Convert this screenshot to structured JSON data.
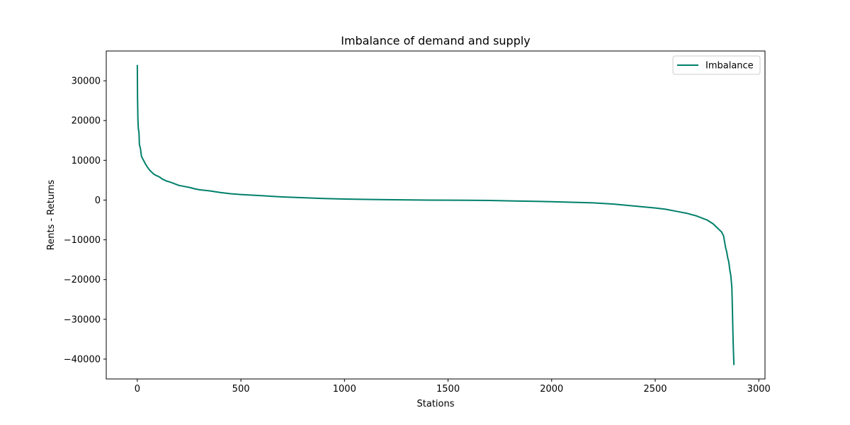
{
  "chart_data": {
    "type": "line",
    "title": "Imbalance of demand and supply",
    "xlabel": "Stations",
    "ylabel": "Rents - Returns",
    "xlim": [
      -150,
      3030
    ],
    "ylim": [
      -45000,
      37500
    ],
    "xticks": [
      0,
      500,
      1000,
      1500,
      2000,
      2500,
      3000
    ],
    "xtick_labels": [
      "0",
      "500",
      "1000",
      "1500",
      "2000",
      "2500",
      "3000"
    ],
    "yticks": [
      30000,
      20000,
      10000,
      0,
      -10000,
      -20000,
      -30000,
      -40000
    ],
    "ytick_labels": [
      "30000",
      "20000",
      "10000",
      "0",
      "−10000",
      "−20000",
      "−30000",
      "−40000"
    ],
    "grid": false,
    "legend_position": "top-right",
    "series": [
      {
        "name": "Imbalance",
        "color": "#00806a",
        "x": [
          0,
          1,
          3,
          5,
          8,
          10,
          15,
          20,
          25,
          30,
          35,
          40,
          50,
          60,
          70,
          80,
          90,
          100,
          110,
          120,
          140,
          160,
          180,
          200,
          220,
          250,
          280,
          300,
          350,
          400,
          450,
          500,
          600,
          700,
          800,
          900,
          1000,
          1200,
          1400,
          1600,
          1700,
          1800,
          2000,
          2200,
          2300,
          2400,
          2500,
          2550,
          2600,
          2650,
          2700,
          2750,
          2780,
          2800,
          2810,
          2820,
          2830,
          2835,
          2840,
          2845,
          2850,
          2855,
          2860,
          2865,
          2870,
          2873,
          2875,
          2877,
          2879,
          2880
        ],
        "values": [
          34000,
          26000,
          20000,
          18000,
          17000,
          14000,
          13000,
          11000,
          10500,
          10000,
          9500,
          9000,
          8200,
          7500,
          7000,
          6500,
          6200,
          6000,
          5700,
          5300,
          4800,
          4500,
          4100,
          3700,
          3500,
          3200,
          2800,
          2600,
          2300,
          1900,
          1600,
          1400,
          1100,
          800,
          600,
          400,
          250,
          100,
          0,
          -50,
          -100,
          -200,
          -400,
          -700,
          -1000,
          -1500,
          -2000,
          -2300,
          -2800,
          -3300,
          -4000,
          -5000,
          -6000,
          -7000,
          -7500,
          -8000,
          -9000,
          -10500,
          -12000,
          -13000,
          -14500,
          -15500,
          -17500,
          -19000,
          -22000,
          -28000,
          -33000,
          -37000,
          -40000,
          -41500
        ]
      }
    ]
  }
}
